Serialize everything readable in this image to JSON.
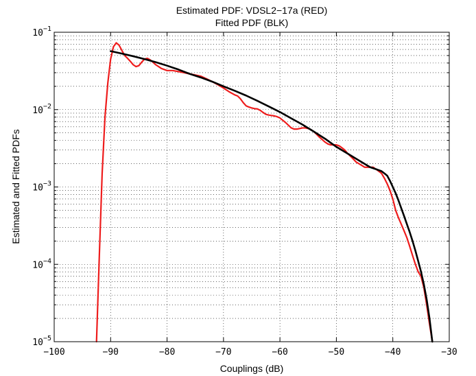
{
  "chart_data": {
    "type": "line",
    "title": "Estimated PDF: VDSL2−17a (RED)",
    "subtitle": "Fitted PDF (BLK)",
    "xlabel": "Couplings (dB)",
    "ylabel": "Estimated and Fitted PDFs",
    "xlim": [
      -100,
      -30
    ],
    "ylim": [
      1e-05,
      0.1
    ],
    "yscale": "log",
    "grid": true,
    "x_ticks": [
      -100,
      -90,
      -80,
      -70,
      -60,
      -50,
      -40,
      -30
    ],
    "x_tick_labels": [
      "−100",
      "−90",
      "−80",
      "−70",
      "−60",
      "−50",
      "−40",
      "−30"
    ],
    "y_ticks": [
      {
        "value": 1e-05,
        "base": "10",
        "exp": "−5"
      },
      {
        "value": 0.0001,
        "base": "10",
        "exp": "−4"
      },
      {
        "value": 0.001,
        "base": "10",
        "exp": "−3"
      },
      {
        "value": 0.01,
        "base": "10",
        "exp": "−2"
      },
      {
        "value": 0.1,
        "base": "10",
        "exp": "−1"
      }
    ],
    "series": [
      {
        "color": "#ee1c1c",
        "x": [
          -92.5,
          -92.0,
          -91.5,
          -91.0,
          -90.5,
          -90.0,
          -89.5,
          -89.0,
          -88.5,
          -88.0,
          -87.5,
          -87.0,
          -86.5,
          -86.0,
          -85.5,
          -85.0,
          -84.5,
          -84.0,
          -83.5,
          -83.0,
          -82.5,
          -82.0,
          -81.5,
          -81.0,
          -80.5,
          -80.0,
          -79.0,
          -78.0,
          -77.0,
          -76.0,
          -75.0,
          -74.0,
          -73.0,
          -72.0,
          -71.0,
          -70.0,
          -69.0,
          -68.0,
          -67.5,
          -67.0,
          -66.5,
          -66.0,
          -65.5,
          -65.0,
          -64.5,
          -64.0,
          -63.5,
          -63.0,
          -62.5,
          -62.0,
          -61.5,
          -61.0,
          -60.5,
          -60.0,
          -59.0,
          -58.0,
          -57.5,
          -57.0,
          -56.5,
          -56.0,
          -55.5,
          -55.0,
          -54.5,
          -54.0,
          -53.5,
          -53.0,
          -52.5,
          -52.0,
          -51.5,
          -51.0,
          -50.5,
          -50.0,
          -49.5,
          -49.0,
          -48.5,
          -48.0,
          -47.5,
          -47.0,
          -46.5,
          -46.0,
          -45.5,
          -45.0,
          -44.5,
          -44.0,
          -43.5,
          -43.0,
          -42.5,
          -42.0,
          -41.5,
          -41.0,
          -40.5,
          -40.0,
          -39.5,
          -39.0,
          -38.5,
          -38.0,
          -37.5,
          -37.0,
          -36.5,
          -36.0,
          -35.5,
          -35.0,
          -34.5,
          -34.0,
          -33.5,
          -33.0
        ],
        "y": [
          1e-05,
          0.00013,
          0.0015,
          0.008,
          0.022,
          0.045,
          0.065,
          0.073,
          0.068,
          0.058,
          0.05,
          0.046,
          0.042,
          0.038,
          0.036,
          0.037,
          0.041,
          0.045,
          0.046,
          0.044,
          0.041,
          0.038,
          0.036,
          0.034,
          0.033,
          0.032,
          0.032,
          0.031,
          0.03,
          0.029,
          0.028,
          0.027,
          0.025,
          0.023,
          0.021,
          0.019,
          0.017,
          0.0155,
          0.015,
          0.0138,
          0.0123,
          0.0112,
          0.0108,
          0.0105,
          0.0103,
          0.0102,
          0.0098,
          0.0092,
          0.0087,
          0.0085,
          0.0084,
          0.0083,
          0.0081,
          0.0078,
          0.0068,
          0.0058,
          0.0056,
          0.0056,
          0.0057,
          0.0058,
          0.0058,
          0.0057,
          0.0055,
          0.0052,
          0.0048,
          0.0044,
          0.0041,
          0.0038,
          0.0036,
          0.0035,
          0.0035,
          0.0035,
          0.0034,
          0.0032,
          0.003,
          0.0027,
          0.0025,
          0.0023,
          0.0021,
          0.002,
          0.0019,
          0.0018,
          0.0018,
          0.0018,
          0.0018,
          0.0017,
          0.0016,
          0.0015,
          0.0013,
          0.0011,
          0.0009,
          0.0007,
          0.0005,
          0.0004,
          0.00033,
          0.00027,
          0.00022,
          0.00017,
          0.00013,
          0.0001,
          8e-05,
          7e-05,
          5e-05,
          3e-05,
          1.7e-05,
          1e-05
        ]
      },
      {
        "color": "#000000",
        "x": [
          -90.0,
          -88.0,
          -86.0,
          -84.0,
          -82.0,
          -80.0,
          -78.0,
          -76.0,
          -74.0,
          -72.0,
          -70.0,
          -68.0,
          -66.0,
          -64.0,
          -62.0,
          -60.0,
          -58.0,
          -56.0,
          -54.0,
          -52.0,
          -50.0,
          -48.0,
          -46.0,
          -44.0,
          -43.0,
          -42.0,
          -41.5,
          -41.0,
          -40.5,
          -40.0,
          -39.5,
          -39.0,
          -38.5,
          -38.0,
          -37.5,
          -37.0,
          -36.5,
          -36.0,
          -35.5,
          -35.0,
          -34.5,
          -34.0,
          -33.5,
          -33.0
        ],
        "y": [
          0.057,
          0.053,
          0.049,
          0.045,
          0.041,
          0.037,
          0.033,
          0.029,
          0.026,
          0.023,
          0.02,
          0.0175,
          0.0152,
          0.013,
          0.011,
          0.0093,
          0.0077,
          0.0064,
          0.0052,
          0.0042,
          0.0033,
          0.0027,
          0.0022,
          0.0018,
          0.0017,
          0.0016,
          0.0015,
          0.0014,
          0.0012,
          0.001,
          0.00083,
          0.00067,
          0.00053,
          0.00042,
          0.00033,
          0.00026,
          0.0002,
          0.00015,
          0.00011,
          8e-05,
          5.5e-05,
          3.5e-05,
          2e-05,
          1e-05
        ]
      }
    ]
  }
}
